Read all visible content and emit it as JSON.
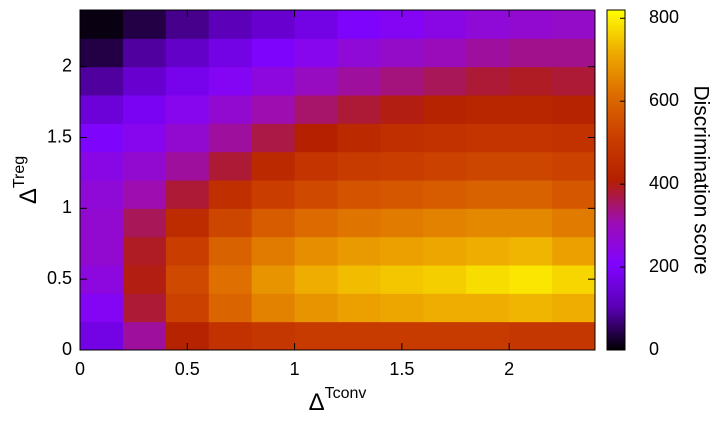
{
  "chart_data": {
    "type": "heatmap",
    "xlabel": {
      "base": "Δ",
      "sup": "Tconv"
    },
    "ylabel": {
      "base": "Δ",
      "sup": "Treg"
    },
    "colorbar_label": "Discrimination score",
    "x": [
      0.1,
      0.3,
      0.5,
      0.7,
      0.9,
      1.1,
      1.3,
      1.5,
      1.7,
      1.9,
      2.1,
      2.3
    ],
    "y": [
      0.1,
      0.3,
      0.5,
      0.7,
      0.9,
      1.1,
      1.3,
      1.5,
      1.7,
      1.9,
      2.1,
      2.3
    ],
    "z": [
      [
        170,
        320,
        420,
        470,
        490,
        500,
        500,
        500,
        500,
        500,
        490,
        490
      ],
      [
        220,
        380,
        520,
        600,
        650,
        680,
        700,
        710,
        720,
        720,
        730,
        720
      ],
      [
        250,
        400,
        540,
        620,
        680,
        720,
        740,
        750,
        760,
        780,
        790,
        770
      ],
      [
        270,
        390,
        510,
        590,
        640,
        670,
        690,
        700,
        710,
        720,
        730,
        700
      ],
      [
        270,
        360,
        450,
        530,
        580,
        610,
        630,
        640,
        650,
        660,
        660,
        640
      ],
      [
        260,
        310,
        380,
        460,
        510,
        540,
        560,
        570,
        580,
        590,
        590,
        570
      ],
      [
        240,
        270,
        320,
        380,
        440,
        480,
        500,
        510,
        520,
        530,
        530,
        520
      ],
      [
        200,
        230,
        270,
        320,
        370,
        410,
        440,
        460,
        470,
        480,
        480,
        470
      ],
      [
        150,
        190,
        230,
        270,
        310,
        350,
        380,
        400,
        420,
        430,
        430,
        420
      ],
      [
        90,
        140,
        180,
        220,
        250,
        290,
        320,
        340,
        360,
        380,
        390,
        380
      ],
      [
        40,
        90,
        130,
        170,
        200,
        230,
        260,
        280,
        300,
        320,
        330,
        330
      ],
      [
        10,
        40,
        80,
        110,
        140,
        170,
        200,
        220,
        240,
        260,
        270,
        280
      ]
    ],
    "xlim": [
      0,
      2.4
    ],
    "ylim": [
      0,
      2.4
    ],
    "xticks": [
      0,
      0.5,
      1,
      1.5,
      2
    ],
    "yticks": [
      0,
      0.5,
      1,
      1.5,
      2
    ],
    "zlim": [
      0,
      820
    ],
    "zticks": [
      0,
      200,
      400,
      600,
      800
    ],
    "colorscale": [
      "#000000",
      "#5a00b4",
      "#8004ff",
      "#9c0db4",
      "#b42000",
      "#ca3e00",
      "#dd6c00",
      "#eeab00",
      "#ffff00"
    ]
  }
}
